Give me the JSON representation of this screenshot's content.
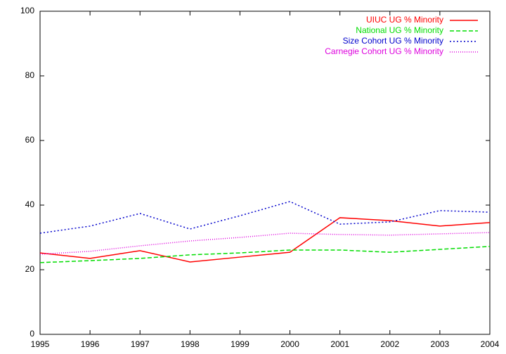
{
  "chart_data": {
    "type": "line",
    "x": [
      1995,
      1996,
      1997,
      1998,
      1999,
      2000,
      2001,
      2002,
      2003,
      2004
    ],
    "xlim": [
      1995,
      2004
    ],
    "xticks": [
      1995,
      1996,
      1997,
      1998,
      1999,
      2000,
      2001,
      2002,
      2003,
      2004
    ],
    "ylim": [
      0,
      100
    ],
    "yticks": [
      0,
      20,
      40,
      60,
      80,
      100
    ],
    "legend": "top-right",
    "series": [
      {
        "name": "UIUC UG % Minority",
        "color": "#ff0000",
        "style": "solid",
        "values": [
          25.2,
          23.5,
          25.9,
          22.4,
          23.9,
          25.4,
          36.1,
          35.2,
          33.5,
          34.6
        ]
      },
      {
        "name": "National UG % Minority",
        "color": "#00dd00",
        "style": "dashed",
        "values": [
          22.2,
          22.8,
          23.5,
          24.6,
          25.2,
          26.1,
          26.1,
          25.4,
          26.3,
          27.2
        ]
      },
      {
        "name": "Size Cohort UG % Minority",
        "color": "#0000cc",
        "style": "dotted",
        "values": [
          31.3,
          33.5,
          37.4,
          32.6,
          36.7,
          41.1,
          34.1,
          34.8,
          38.3,
          37.8
        ]
      },
      {
        "name": "Carnegie Cohort UG % Minority",
        "color": "#dd00dd",
        "style": "fine-dotted",
        "values": [
          24.8,
          25.7,
          27.4,
          28.9,
          30.0,
          31.3,
          30.9,
          30.7,
          31.1,
          31.5
        ]
      }
    ]
  }
}
